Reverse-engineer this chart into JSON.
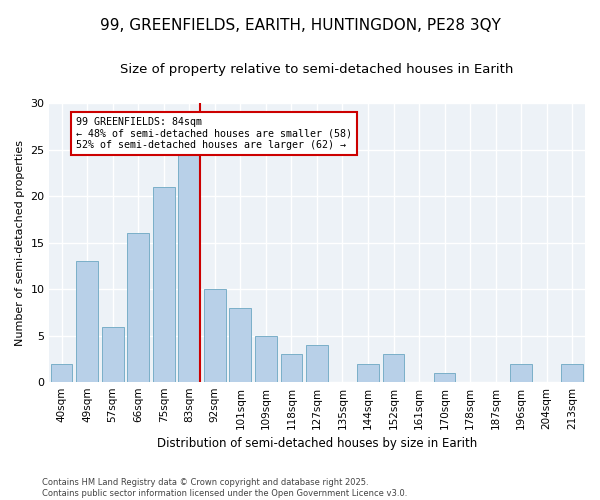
{
  "title1": "99, GREENFIELDS, EARITH, HUNTINGDON, PE28 3QY",
  "title2": "Size of property relative to semi-detached houses in Earith",
  "xlabel": "Distribution of semi-detached houses by size in Earith",
  "ylabel": "Number of semi-detached properties",
  "categories": [
    "40sqm",
    "49sqm",
    "57sqm",
    "66sqm",
    "75sqm",
    "83sqm",
    "92sqm",
    "101sqm",
    "109sqm",
    "118sqm",
    "127sqm",
    "135sqm",
    "144sqm",
    "152sqm",
    "161sqm",
    "170sqm",
    "178sqm",
    "187sqm",
    "196sqm",
    "204sqm",
    "213sqm"
  ],
  "values": [
    2,
    13,
    6,
    16,
    21,
    25,
    10,
    8,
    5,
    3,
    4,
    0,
    2,
    3,
    0,
    1,
    0,
    0,
    2,
    0,
    2
  ],
  "bar_color": "#b8d0e8",
  "bar_edge_color": "#7aafc8",
  "subject_line_color": "#cc0000",
  "annotation_box_text": "99 GREENFIELDS: 84sqm\n← 48% of semi-detached houses are smaller (58)\n52% of semi-detached houses are larger (62) →",
  "annotation_box_color": "#cc0000",
  "ylim": [
    0,
    30
  ],
  "yticks": [
    0,
    5,
    10,
    15,
    20,
    25,
    30
  ],
  "bg_color": "#edf2f7",
  "footer": "Contains HM Land Registry data © Crown copyright and database right 2025.\nContains public sector information licensed under the Open Government Licence v3.0.",
  "title_fontsize": 11,
  "subtitle_fontsize": 9.5
}
